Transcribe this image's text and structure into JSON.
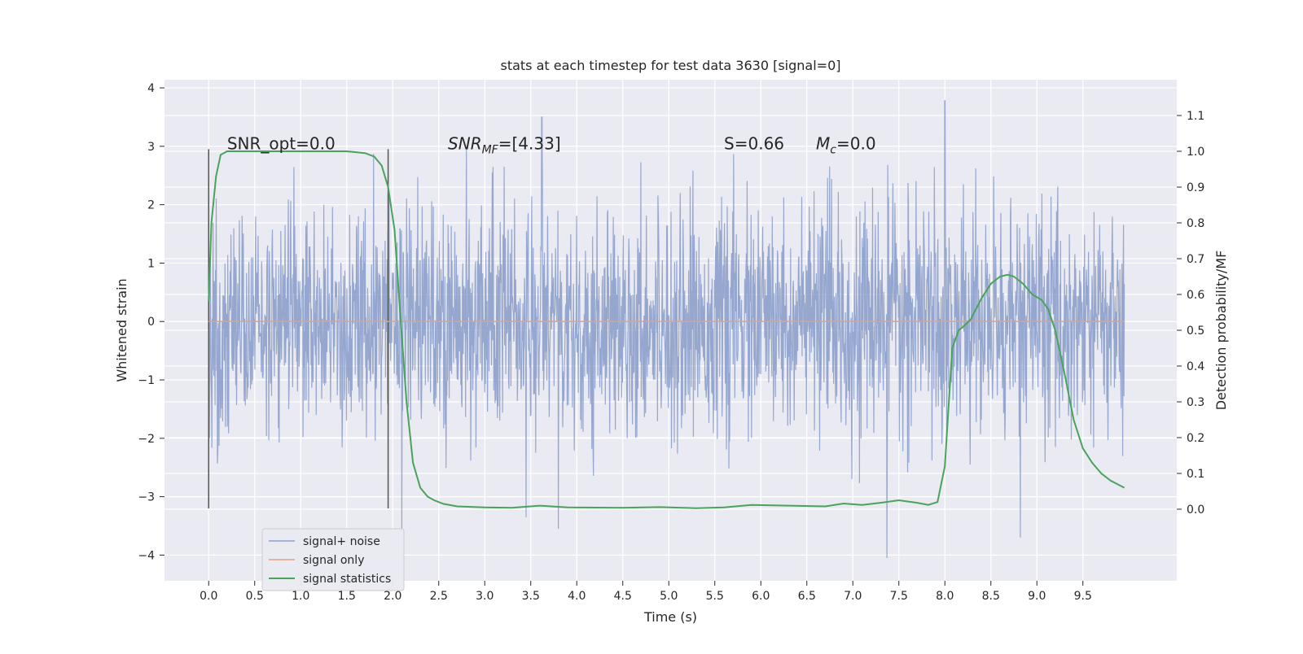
{
  "chart_data": {
    "type": "line",
    "title": "stats at each timestep for test data 3630 [signal=0]",
    "xlabel": "Time (s)",
    "ylabel_left": "Whitened strain",
    "ylabel_right": "Detection probability/MF",
    "xlim": [
      -0.48,
      10.52
    ],
    "ylim_left": [
      -4.44,
      4.14
    ],
    "ylim_right": [
      -0.2,
      1.2
    ],
    "x_ticks": [
      "0.0",
      "0.5",
      "1.0",
      "1.5",
      "2.0",
      "2.5",
      "3.0",
      "3.5",
      "4.0",
      "4.5",
      "5.0",
      "5.5",
      "6.0",
      "6.5",
      "7.0",
      "7.5",
      "8.0",
      "8.5",
      "9.0",
      "9.5"
    ],
    "y_ticks_left": [
      "−4",
      "−3",
      "−2",
      "−1",
      "0",
      "1",
      "2",
      "3",
      "4"
    ],
    "y_ticks_right": [
      "0.0",
      "0.1",
      "0.2",
      "0.3",
      "0.4",
      "0.5",
      "0.6",
      "0.7",
      "0.8",
      "0.9",
      "1.0",
      "1.1"
    ],
    "grid": true,
    "legend_position": "lower-left",
    "colors": {
      "signal_noise": "#8da0cb",
      "signal_only": "#e5a07f",
      "signal_statistics": "#4aa35a",
      "markers": "#555555",
      "plot_bg": "#eaeaf2",
      "grid": "#ffffff"
    },
    "series": [
      {
        "name": "signal+ noise",
        "axis": "left",
        "description_of_values": "whitened noise, approx. uniform envelope",
        "x_range": [
          0.0,
          9.95
        ],
        "envelope": {
          "typical_max": 1.7,
          "typical_min": -1.4,
          "peak_max": 3.78,
          "peak_min": -4.05
        },
        "notable_peaks": [
          {
            "x": 3.62,
            "y": 3.5
          },
          {
            "x": 8.0,
            "y": 3.78
          },
          {
            "x": 7.37,
            "y": -4.05
          },
          {
            "x": 8.82,
            "y": -3.7
          },
          {
            "x": 3.8,
            "y": -3.55
          },
          {
            "x": 2.1,
            "y": -3.55
          },
          {
            "x": 3.45,
            "y": -3.35
          }
        ]
      },
      {
        "name": "signal only",
        "axis": "left",
        "x": [
          0.0,
          9.95
        ],
        "y": [
          0.0,
          0.0
        ]
      },
      {
        "name": "signal statistics",
        "axis": "right",
        "x": [
          0.0,
          0.03,
          0.08,
          0.13,
          0.2,
          0.3,
          0.5,
          1.0,
          1.5,
          1.7,
          1.8,
          1.88,
          1.95,
          2.02,
          2.08,
          2.15,
          2.22,
          2.3,
          2.38,
          2.45,
          2.55,
          2.7,
          3.0,
          3.3,
          3.6,
          3.9,
          4.5,
          4.9,
          5.3,
          5.6,
          5.9,
          6.3,
          6.7,
          6.9,
          7.1,
          7.3,
          7.5,
          7.7,
          7.82,
          7.92,
          8.0,
          8.08,
          8.15,
          8.2,
          8.28,
          8.4,
          8.5,
          8.6,
          8.68,
          8.75,
          8.85,
          8.95,
          9.05,
          9.12,
          9.2,
          9.3,
          9.4,
          9.5,
          9.6,
          9.7,
          9.8,
          9.95
        ],
        "y": [
          0.58,
          0.8,
          0.93,
          0.99,
          1.0,
          1.0,
          1.0,
          1.0,
          1.0,
          0.995,
          0.985,
          0.96,
          0.9,
          0.78,
          0.55,
          0.3,
          0.13,
          0.06,
          0.035,
          0.025,
          0.015,
          0.008,
          0.005,
          0.004,
          0.01,
          0.005,
          0.004,
          0.006,
          0.003,
          0.005,
          0.012,
          0.01,
          0.008,
          0.016,
          0.012,
          0.018,
          0.025,
          0.018,
          0.012,
          0.02,
          0.12,
          0.45,
          0.5,
          0.51,
          0.53,
          0.59,
          0.63,
          0.65,
          0.655,
          0.65,
          0.63,
          0.6,
          0.585,
          0.56,
          0.5,
          0.38,
          0.25,
          0.17,
          0.13,
          0.1,
          0.08,
          0.06
        ]
      }
    ],
    "vertical_markers_x": [
      0.0,
      1.95
    ],
    "annotations": [
      {
        "text": "SNR_opt=0.0",
        "x": 0.2,
        "y": 2.95
      },
      {
        "text": "SNR_MF=[4.33]",
        "x": 2.6,
        "y": 2.95
      },
      {
        "text": "S=0.66",
        "x": 5.6,
        "y": 2.95
      },
      {
        "text": "M_c=0.0",
        "x": 6.6,
        "y": 2.95
      }
    ]
  },
  "legend": {
    "items": [
      "signal+ noise",
      "signal only",
      "signal statistics"
    ]
  }
}
